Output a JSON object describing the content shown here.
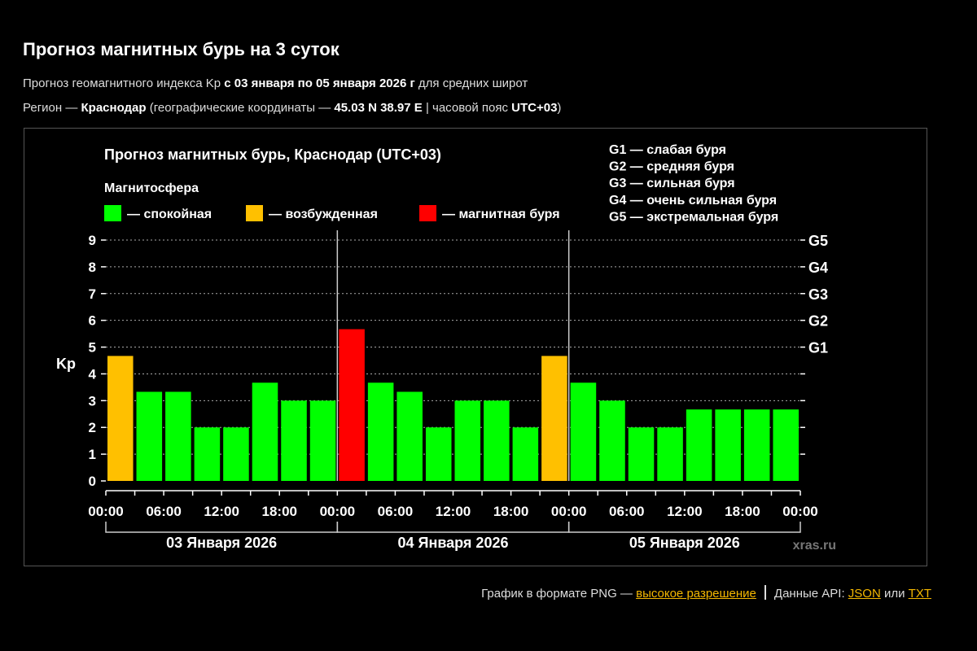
{
  "page": {
    "title": "Прогноз магнитных бурь на 3 суток",
    "sub1": {
      "text_a": "Прогноз геомагнитного индекса Kp ",
      "date_range": "с 03 января по 05 января 2026 г",
      "text_b": " для средних широт"
    },
    "sub2": {
      "text_a": "Регион — ",
      "city": "Краснодар",
      "text_b": " (географические координаты — ",
      "coords": "45.03 N 38.97 E",
      "text_c": " | часовой пояс ",
      "tz": "UTC+03",
      "text_d": ")"
    }
  },
  "chart_data": {
    "type": "bar",
    "title": "Прогноз магнитных бурь, Краснодар (UTC+03)",
    "legend_title": "Магнитосфера",
    "legend": [
      {
        "label": "— спокойная",
        "color": "#00ff00"
      },
      {
        "label": "— возбужденная",
        "color": "#ffc000"
      },
      {
        "label": "— магнитная буря",
        "color": "#ff0000"
      }
    ],
    "g_scale": [
      "G1 — слабая буря",
      "G2 — средняя буря",
      "G3 — сильная буря",
      "G4 — очень сильная буря",
      "G5 — экстремальная буря"
    ],
    "ylabel": "Kp",
    "ylim": [
      0,
      9
    ],
    "yticks": [
      "0",
      "1",
      "2",
      "3",
      "4",
      "5",
      "6",
      "7",
      "8",
      "9"
    ],
    "right_ticks": [
      {
        "value": 5,
        "label": "G1"
      },
      {
        "value": 6,
        "label": "G2"
      },
      {
        "value": 7,
        "label": "G3"
      },
      {
        "value": 8,
        "label": "G4"
      },
      {
        "value": 9,
        "label": "G5"
      }
    ],
    "xtick_labels": [
      "00:00",
      "06:00",
      "12:00",
      "18:00",
      "00:00",
      "06:00",
      "12:00",
      "18:00",
      "00:00",
      "06:00",
      "12:00",
      "18:00",
      "00:00"
    ],
    "days": [
      "03 Января 2026",
      "04 Января 2026",
      "05 Января 2026"
    ],
    "values": [
      4.67,
      3.33,
      3.33,
      2.0,
      2.0,
      3.67,
      3.0,
      3.0,
      5.67,
      3.67,
      3.33,
      2.0,
      3.0,
      3.0,
      2.0,
      4.67,
      3.67,
      3.0,
      2.0,
      2.0,
      2.67,
      2.67,
      2.67,
      2.67
    ],
    "colors": [
      "#ffc000",
      "#00ff00",
      "#00ff00",
      "#00ff00",
      "#00ff00",
      "#00ff00",
      "#00ff00",
      "#00ff00",
      "#ff0000",
      "#00ff00",
      "#00ff00",
      "#00ff00",
      "#00ff00",
      "#00ff00",
      "#00ff00",
      "#ffc000",
      "#00ff00",
      "#00ff00",
      "#00ff00",
      "#00ff00",
      "#00ff00",
      "#00ff00",
      "#00ff00",
      "#00ff00"
    ],
    "grid": true,
    "watermark": "xras.ru"
  },
  "footer": {
    "text_a": "График в формате PNG — ",
    "link_hires": "высокое разрешение",
    "text_b": "Данные API: ",
    "link_json": "JSON",
    "text_or": " или ",
    "link_txt": "TXT"
  },
  "colors": {
    "background": "#000000",
    "link": "#f5b800"
  }
}
